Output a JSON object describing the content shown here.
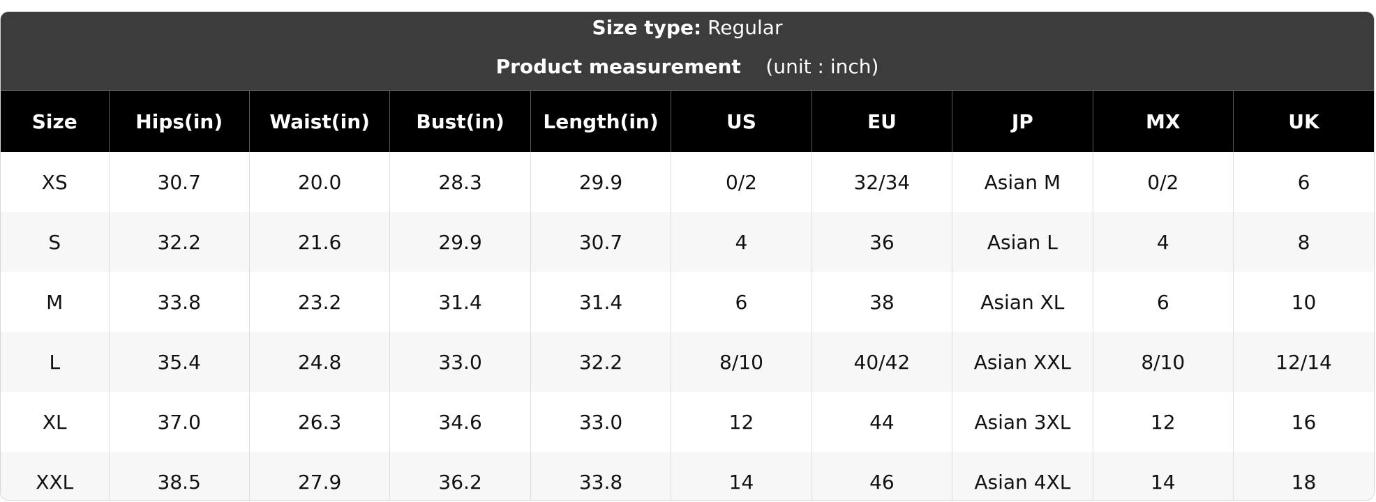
{
  "header": {
    "size_type_label": "Size type:",
    "size_type_value": "Regular",
    "measurement_label": "Product measurement",
    "unit": "(unit : inch)"
  },
  "table": {
    "columns": [
      "Size",
      "Hips(in)",
      "Waist(in)",
      "Bust(in)",
      "Length(in)",
      "US",
      "EU",
      "JP",
      "MX",
      "UK"
    ],
    "rows": [
      [
        "XS",
        "30.7",
        "20.0",
        "28.3",
        "29.9",
        "0/2",
        "32/34",
        "Asian M",
        "0/2",
        "6"
      ],
      [
        "S",
        "32.2",
        "21.6",
        "29.9",
        "30.7",
        "4",
        "36",
        "Asian L",
        "4",
        "8"
      ],
      [
        "M",
        "33.8",
        "23.2",
        "31.4",
        "31.4",
        "6",
        "38",
        "Asian XL",
        "6",
        "10"
      ],
      [
        "L",
        "35.4",
        "24.8",
        "33.0",
        "32.2",
        "8/10",
        "40/42",
        "Asian XXL",
        "8/10",
        "12/14"
      ],
      [
        "XL",
        "37.0",
        "26.3",
        "34.6",
        "33.0",
        "12",
        "44",
        "Asian 3XL",
        "12",
        "16"
      ],
      [
        "XXL",
        "38.5",
        "27.9",
        "36.2",
        "33.8",
        "14",
        "46",
        "Asian 4XL",
        "14",
        "18"
      ]
    ]
  }
}
